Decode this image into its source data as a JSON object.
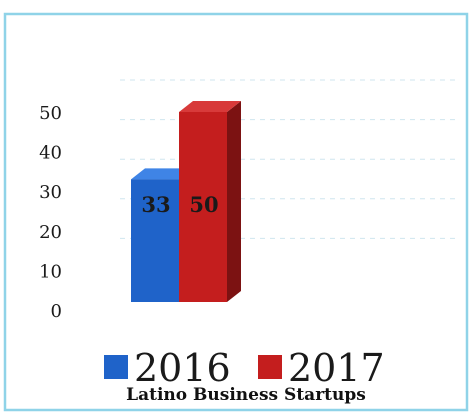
{
  "chart_data": {
    "type": "bar",
    "categories": [
      "2016",
      "2017"
    ],
    "values": [
      33,
      50
    ],
    "data_labels": [
      "33",
      "50"
    ],
    "title": "Latino Business Startups",
    "xlabel": "",
    "ylabel": "",
    "ylim": [
      0,
      50
    ],
    "yticks": [
      "0",
      "10",
      "20",
      "30",
      "40",
      "50"
    ],
    "grid": true,
    "legend_placement": "bottom",
    "style": "3d-column",
    "colors": {
      "2016": {
        "front": "#1f63c9",
        "side": "#174a98",
        "top": "#3f84e6"
      },
      "2017": {
        "front": "#c41e1e",
        "side": "#7c1212",
        "top": "#d83a3a"
      },
      "frame": "#8fd3e8",
      "grid": "#cfe6ef"
    }
  }
}
